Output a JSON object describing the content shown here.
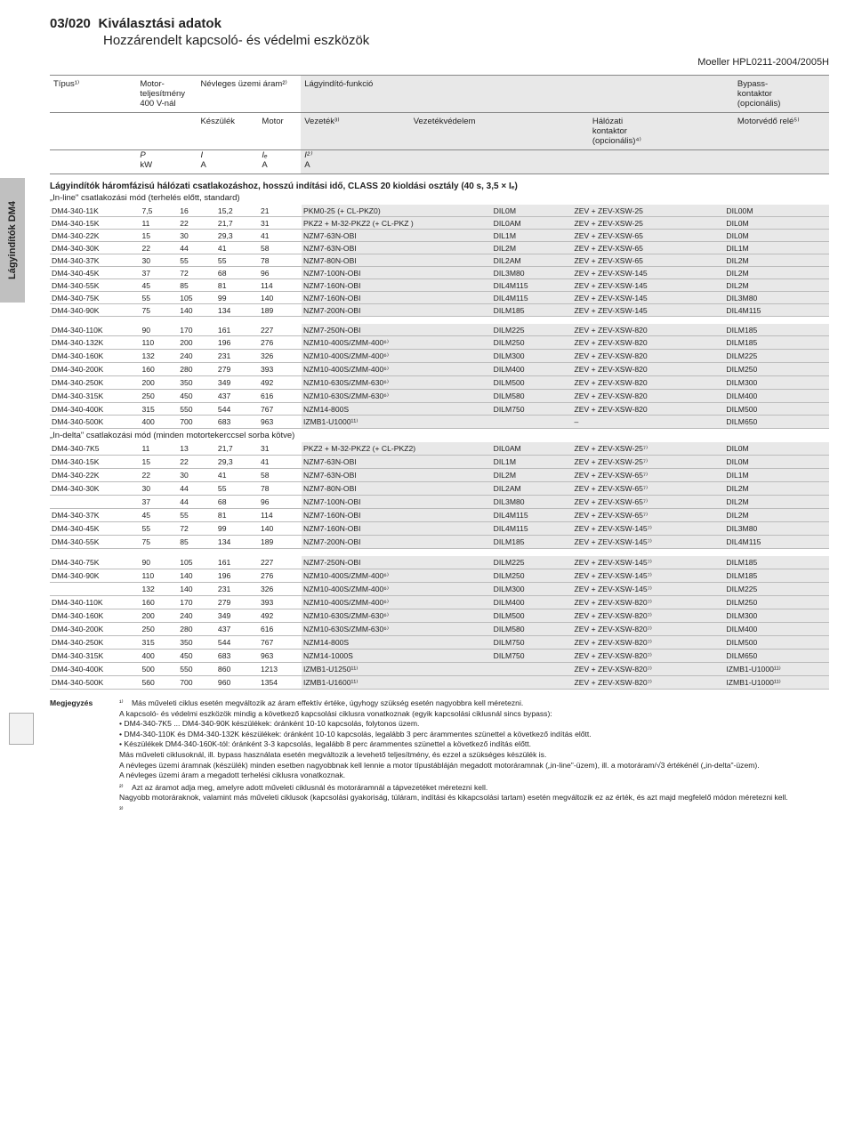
{
  "page": {
    "code": "03/020",
    "title_main": "Kiválasztási adatok",
    "title_sub": "Hozzárendelt kapcsoló- és védelmi eszközök",
    "doc_id": "Moeller HPL0211-2004/2005H",
    "sidebar_tab": "Lágyindítók DM4"
  },
  "header": {
    "cols": [
      "Típus¹⁾",
      "Motor-\nteljesítmény\n400 V-nál",
      "Névleges üzemi áram²⁾",
      "",
      "Lágyindító-funkció",
      "",
      "",
      "Bypass-\nkontaktor\n(opcionális)"
    ],
    "row2": [
      "",
      "",
      "Készülék",
      "Motor",
      "Vezeték³⁾",
      "Vezetékvédelem",
      "Hálózati\nkontaktor\n(opcionális)⁴⁾",
      "Motorvédő relé⁵⁾",
      ""
    ],
    "symbols": [
      "",
      "P",
      "I",
      "Iₑ",
      "I²⁾",
      "",
      "",
      "",
      ""
    ],
    "units": [
      "",
      "kW",
      "A",
      "A",
      "A",
      "",
      "",
      "",
      ""
    ]
  },
  "section_title": "Lágyindítók háromfázisú hálózati csatlakozáshoz, hosszú indítási idő, CLASS 20 kioldási osztály (40 s, 3,5 × Iₑ)",
  "mode1_label": "„In-line\" csatlakozási mód (terhelés előtt, standard)",
  "mode2_label": "„In-delta\" csatlakozási mód (minden motortekerccsel sorba kötve)",
  "rows1a": [
    [
      "DM4-340-11K",
      "7,5",
      "16",
      "15,2",
      "21",
      "PKM0-25 (+ CL-PKZ0)",
      "DIL0M",
      "ZEV + ZEV-XSW-25",
      "DIL00M"
    ],
    [
      "DM4-340-15K",
      "11",
      "22",
      "21,7",
      "31",
      "PKZ2 + M-32-PKZ2 (+ CL-PKZ )",
      "DIL0AM",
      "ZEV + ZEV-XSW-25",
      "DIL0M"
    ],
    [
      "DM4-340-22K",
      "15",
      "30",
      "29,3",
      "41",
      "NZM7-63N-OBI",
      "DIL1M",
      "ZEV + ZEV-XSW-65",
      "DIL0M"
    ],
    [
      "DM4-340-30K",
      "22",
      "44",
      "41",
      "58",
      "NZM7-63N-OBI",
      "DIL2M",
      "ZEV + ZEV-XSW-65",
      "DIL1M"
    ],
    [
      "DM4-340-37K",
      "30",
      "55",
      "55",
      "78",
      "NZM7-80N-OBI",
      "DIL2AM",
      "ZEV + ZEV-XSW-65",
      "DIL2M"
    ],
    [
      "DM4-340-45K",
      "37",
      "72",
      "68",
      "96",
      "NZM7-100N-OBI",
      "DIL3M80",
      "ZEV + ZEV-XSW-145",
      "DIL2M"
    ],
    [
      "DM4-340-55K",
      "45",
      "85",
      "81",
      "114",
      "NZM7-160N-OBI",
      "DIL4M115",
      "ZEV + ZEV-XSW-145",
      "DIL2M"
    ],
    [
      "DM4-340-75K",
      "55",
      "105",
      "99",
      "140",
      "NZM7-160N-OBI",
      "DIL4M115",
      "ZEV + ZEV-XSW-145",
      "DIL3M80"
    ],
    [
      "DM4-340-90K",
      "75",
      "140",
      "134",
      "189",
      "NZM7-200N-OBI",
      "DILM185",
      "ZEV + ZEV-XSW-145",
      "DIL4M115"
    ]
  ],
  "rows1b": [
    [
      "DM4-340-110K",
      "90",
      "170",
      "161",
      "227",
      "NZM7-250N-OBI",
      "DILM225",
      "ZEV + ZEV-XSW-820",
      "DILM185"
    ],
    [
      "DM4-340-132K",
      "110",
      "200",
      "196",
      "276",
      "NZM10-400S/ZMM-400⁶⁾",
      "DILM250",
      "ZEV + ZEV-XSW-820",
      "DILM185"
    ],
    [
      "DM4-340-160K",
      "132",
      "240",
      "231",
      "326",
      "NZM10-400S/ZMM-400⁶⁾",
      "DILM300",
      "ZEV + ZEV-XSW-820",
      "DILM225"
    ],
    [
      "DM4-340-200K",
      "160",
      "280",
      "279",
      "393",
      "NZM10-400S/ZMM-400⁶⁾",
      "DILM400",
      "ZEV + ZEV-XSW-820",
      "DILM250"
    ],
    [
      "DM4-340-250K",
      "200",
      "350",
      "349",
      "492",
      "NZM10-630S/ZMM-630⁶⁾",
      "DILM500",
      "ZEV + ZEV-XSW-820",
      "DILM300"
    ],
    [
      "DM4-340-315K",
      "250",
      "450",
      "437",
      "616",
      "NZM10-630S/ZMM-630⁶⁾",
      "DILM580",
      "ZEV + ZEV-XSW-820",
      "DILM400"
    ],
    [
      "DM4-340-400K",
      "315",
      "550",
      "544",
      "767",
      "NZM14-800S",
      "DILM750",
      "ZEV + ZEV-XSW-820",
      "DILM500"
    ],
    [
      "DM4-340-500K",
      "400",
      "700",
      "683",
      "963",
      "IZMB1-U1000¹¹⁾",
      "",
      "–",
      "DILM650"
    ]
  ],
  "rows2a": [
    [
      "DM4-340-7K5",
      "11",
      "13",
      "21,7",
      "31",
      "PKZ2 + M-32-PKZ2 (+ CL-PKZ2)",
      "DIL0AM",
      "ZEV + ZEV-XSW-25⁷⁾",
      "DIL0M"
    ],
    [
      "DM4-340-15K",
      "15",
      "22",
      "29,3",
      "41",
      "NZM7-63N-OBI",
      "DIL1M",
      "ZEV + ZEV-XSW-25⁷⁾",
      "DIL0M"
    ],
    [
      "DM4-340-22K",
      "22",
      "30",
      "41",
      "58",
      "NZM7-63N-OBI",
      "DIL2M",
      "ZEV + ZEV-XSW-65⁷⁾",
      "DIL1M"
    ],
    [
      "DM4-340-30K",
      "30",
      "44",
      "55",
      "78",
      "NZM7-80N-OBI",
      "DIL2AM",
      "ZEV + ZEV-XSW-65⁷⁾",
      "DIL2M"
    ],
    [
      "",
      "37",
      "44",
      "68",
      "96",
      "NZM7-100N-OBI",
      "DIL3M80",
      "ZEV + ZEV-XSW-65⁷⁾",
      "DIL2M"
    ],
    [
      "DM4-340-37K",
      "45",
      "55",
      "81",
      "114",
      "NZM7-160N-OBI",
      "DIL4M115",
      "ZEV + ZEV-XSW-65⁷⁾",
      "DIL2M"
    ],
    [
      "DM4-340-45K",
      "55",
      "72",
      "99",
      "140",
      "NZM7-160N-OBI",
      "DIL4M115",
      "ZEV + ZEV-XSW-145⁷⁾",
      "DIL3M80"
    ],
    [
      "DM4-340-55K",
      "75",
      "85",
      "134",
      "189",
      "NZM7-200N-OBI",
      "DILM185",
      "ZEV + ZEV-XSW-145⁷⁾",
      "DIL4M115"
    ]
  ],
  "rows2b": [
    [
      "DM4-340-75K",
      "90",
      "105",
      "161",
      "227",
      "NZM7-250N-OBI",
      "DILM225",
      "ZEV + ZEV-XSW-145⁷⁾",
      "DILM185"
    ],
    [
      "DM4-340-90K",
      "110",
      "140",
      "196",
      "276",
      "NZM10-400S/ZMM-400⁶⁾",
      "DILM250",
      "ZEV + ZEV-XSW-145⁷⁾",
      "DILM185"
    ],
    [
      "",
      "132",
      "140",
      "231",
      "326",
      "NZM10-400S/ZMM-400⁶⁾",
      "DILM300",
      "ZEV + ZEV-XSW-145⁷⁾",
      "DILM225"
    ],
    [
      "DM4-340-110K",
      "160",
      "170",
      "279",
      "393",
      "NZM10-400S/ZMM-400⁶⁾",
      "DILM400",
      "ZEV + ZEV-XSW-820⁷⁾",
      "DILM250"
    ],
    [
      "DM4-340-160K",
      "200",
      "240",
      "349",
      "492",
      "NZM10-630S/ZMM-630⁶⁾",
      "DILM500",
      "ZEV + ZEV-XSW-820⁷⁾",
      "DILM300"
    ],
    [
      "DM4-340-200K",
      "250",
      "280",
      "437",
      "616",
      "NZM10-630S/ZMM-630⁶⁾",
      "DILM580",
      "ZEV + ZEV-XSW-820⁷⁾",
      "DILM400"
    ],
    [
      "DM4-340-250K",
      "315",
      "350",
      "544",
      "767",
      "NZM14-800S",
      "DILM750",
      "ZEV + ZEV-XSW-820⁷⁾",
      "DILM500"
    ],
    [
      "DM4-340-315K",
      "400",
      "450",
      "683",
      "963",
      "NZM14-1000S",
      "DILM750",
      "ZEV + ZEV-XSW-820⁷⁾",
      "DILM650"
    ],
    [
      "DM4-340-400K",
      "500",
      "550",
      "860",
      "1213",
      "IZMB1-U1250¹¹⁾",
      "",
      "ZEV + ZEV-XSW-820⁷⁾",
      "IZMB1-U1000¹¹⁾"
    ],
    [
      "DM4-340-500K",
      "560",
      "700",
      "960",
      "1354",
      "IZMB1-U1600¹¹⁾",
      "",
      "ZEV + ZEV-XSW-820⁷⁾",
      "IZMB1-U1000¹¹⁾"
    ]
  ],
  "notes": {
    "label": "Megjegyzés",
    "items": [
      {
        "sup": "¹⁾",
        "text": "Más műveleti ciklus esetén megváltozik az áram effektív értéke, úgyhogy szükség esetén nagyobbra kell méretezni.\nA kapcsoló- és védelmi eszközök mindig a következő kapcsolási ciklusra vonatkoznak (egyik kapcsolási ciklusnál sincs bypass):\n• DM4-340-7K5 ... DM4-340-90K készülékek: óránként 10-10 kapcsolás, folytonos üzem.\n• DM4-340-110K és DM4-340-132K készülékek: óránként 10-10 kapcsolás, legalább 3 perc árammentes szünettel a következő indítás előtt.\n• Készülékek DM4-340-160K-tól: óránként 3-3 kapcsolás, legalább 8 perc árammentes szünettel a következő indítás előtt.\nMás műveleti ciklusoknál, ill. bypass használata esetén megváltozik a levehető teljesítmény, és ezzel a szükséges készülék is.\nA névleges üzemi áramnak (készülék) minden esetben nagyobbnak kell lennie a motor típustábláján megadott motoráramnak („in-line\"-üzem), ill. a motoráram/√3 értékénél („in-delta\"-üzem).\nA névleges üzemi áram a megadott terhelési ciklusra vonatkoznak."
      },
      {
        "sup": "²⁾",
        "text": "Azt az áramot adja meg, amelyre adott műveleti ciklusnál és motoráramnál a tápvezetéket méretezni kell.\nNagyobb motoráraknok, valamint más műveleti ciklusok (kapcsolási gyakoriság, túláram, indítási és kikapcsolási tartam) esetén megváltozik ez az érték, és azt majd megfelelő módon méretezni kell."
      },
      {
        "sup": "³⁾",
        "text": ""
      }
    ]
  }
}
